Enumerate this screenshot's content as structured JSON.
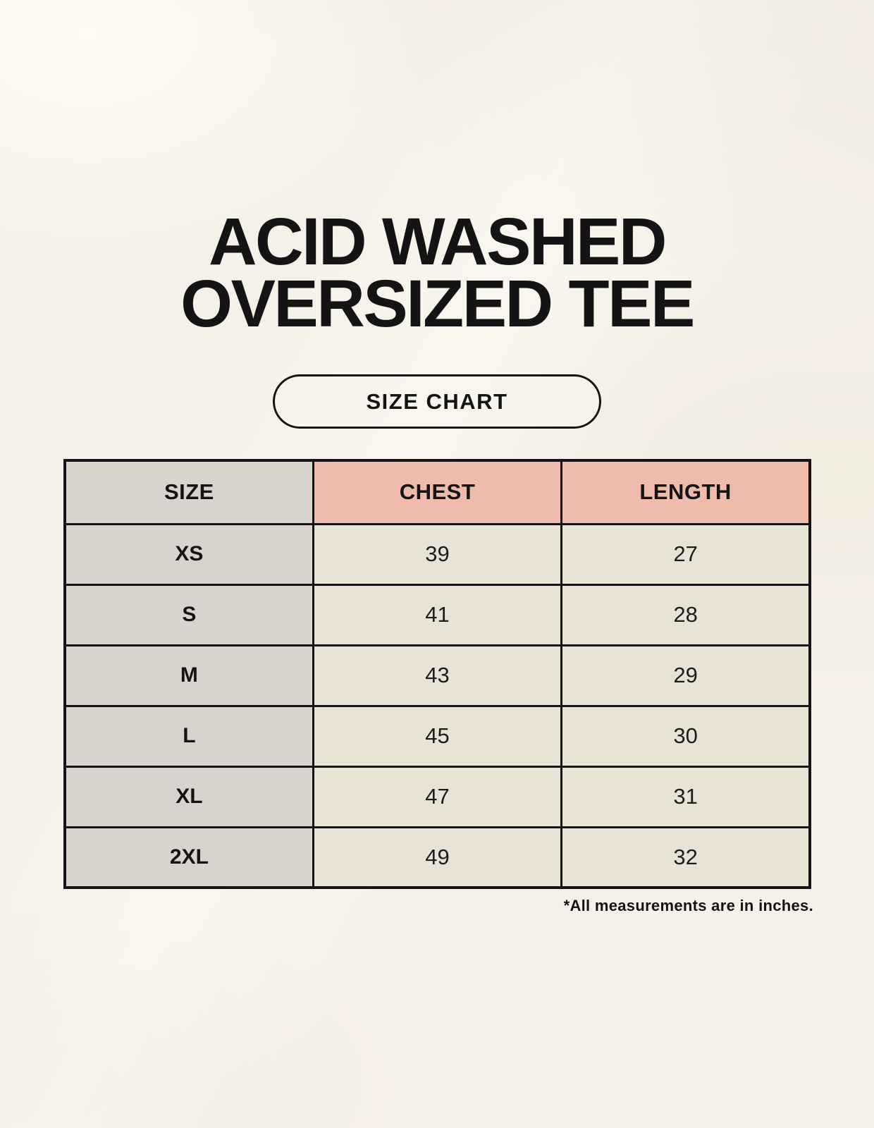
{
  "title": {
    "line1": "ACID WASHED",
    "line2": "OVERSIZED TEE"
  },
  "button": {
    "label": "SIZE CHART"
  },
  "chart_data": {
    "type": "table",
    "title": "ACID WASHED OVERSIZED TEE",
    "subtitle": "SIZE CHART",
    "columns": [
      "SIZE",
      "CHEST",
      "LENGTH"
    ],
    "rows": [
      [
        "XS",
        "39",
        "27"
      ],
      [
        "S",
        "41",
        "28"
      ],
      [
        "M",
        "43",
        "29"
      ],
      [
        "L",
        "45",
        "30"
      ],
      [
        "XL",
        "47",
        "31"
      ],
      [
        "2XL",
        "49",
        "32"
      ]
    ],
    "units": "inches",
    "footnote": "*All measurements are in inches."
  },
  "colors": {
    "background": "#f6f1e8",
    "header_accent": "#eebbad",
    "size_column": "#d9d3ce",
    "data_cell": "#e9e3d6",
    "border": "#141414",
    "text": "#141414"
  }
}
